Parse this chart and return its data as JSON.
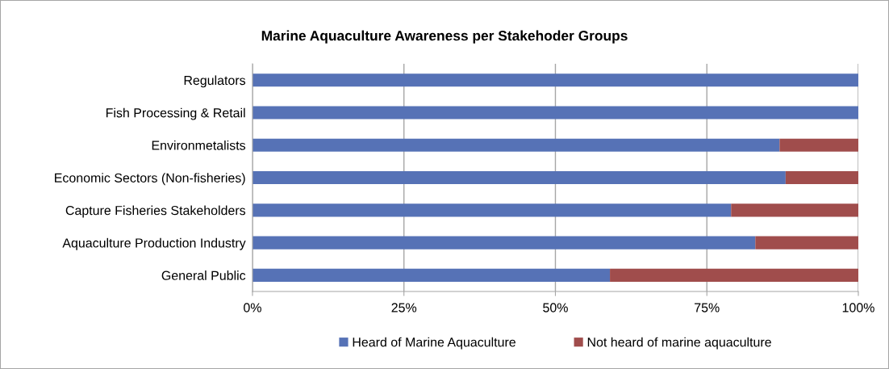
{
  "chart_data": {
    "type": "bar",
    "orientation": "horizontal",
    "stacked": true,
    "title": "Marine Aquaculture Awareness per Stakehoder Groups",
    "categories": [
      "Regulators",
      "Fish Processing & Retail",
      "Environmetalists",
      "Economic Sectors (Non-fisheries)",
      "Capture Fisheries Stakeholders",
      "Aquaculture Production Industry",
      "General Public"
    ],
    "series": [
      {
        "name": "Heard of Marine Aquaculture",
        "color": "#5672b6",
        "values": [
          100,
          100,
          87,
          88,
          79,
          83,
          59
        ]
      },
      {
        "name": "Not heard of marine aquaculture",
        "color": "#a04d4c",
        "values": [
          0,
          0,
          13,
          12,
          21,
          17,
          41
        ]
      }
    ],
    "xlim": [
      0,
      100
    ],
    "xticks": [
      {
        "value": 0,
        "label": "0%"
      },
      {
        "value": 25,
        "label": "25%"
      },
      {
        "value": 50,
        "label": "50%"
      },
      {
        "value": 75,
        "label": "75%"
      },
      {
        "value": 100,
        "label": "100%"
      }
    ],
    "grid": "x",
    "legend": "bottom"
  }
}
